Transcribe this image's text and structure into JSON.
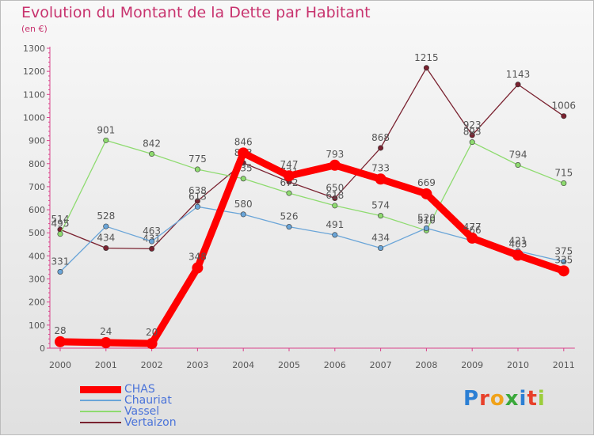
{
  "title": "Evolution du Montant de la Dette par Habitant",
  "subtitle": "(en €)",
  "logo": "Proxiti",
  "chart_data": {
    "type": "line",
    "title": "Evolution du Montant de la Dette par Habitant",
    "ylabel": "(en €)",
    "xlabel": "",
    "ylim": [
      0,
      1300
    ],
    "yticks": [
      0,
      100,
      200,
      300,
      400,
      500,
      600,
      700,
      800,
      900,
      1000,
      1100,
      1200,
      1300
    ],
    "categories": [
      "2000",
      "2001",
      "2002",
      "2003",
      "2004",
      "2005",
      "2006",
      "2007",
      "2008",
      "2009",
      "2010",
      "2011"
    ],
    "grid": false,
    "legend": "bottom-left",
    "series": [
      {
        "name": "Vertaizon",
        "color": "#7a2230",
        "values": [
          514,
          434,
          431,
          638,
          803,
          721,
          650,
          868,
          1215,
          923,
          1143,
          1006
        ]
      },
      {
        "name": "Vassel",
        "color": "#8edb6f",
        "values": [
          495,
          901,
          842,
          775,
          735,
          672,
          618,
          574,
          510,
          893,
          794,
          715
        ]
      },
      {
        "name": "Chauriat",
        "color": "#6aa5d8",
        "values": [
          331,
          528,
          463,
          613,
          580,
          526,
          491,
          434,
          520,
          466,
          421,
          375
        ]
      },
      {
        "name": "CHAS",
        "color": "#ff0000",
        "values": [
          28,
          24,
          20,
          348,
          846,
          747,
          793,
          733,
          669,
          477,
          403,
          335
        ]
      }
    ]
  }
}
